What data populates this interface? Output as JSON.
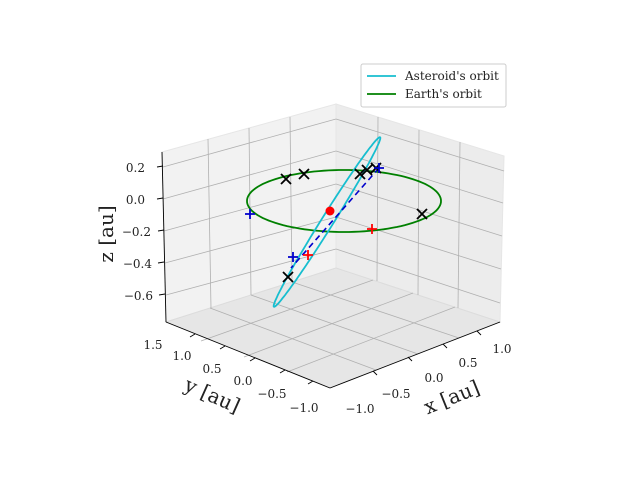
{
  "chart_data": {
    "type": "line",
    "projection": "3d",
    "xlabel": "x [au]",
    "ylabel": "y [au]",
    "zlabel": "z [au]",
    "x_ticks": [
      "−1.0",
      "−0.5",
      "0.0",
      "0.5",
      "1.0"
    ],
    "y_ticks": [
      "−1.0",
      "−0.5",
      "0.0",
      "0.5",
      "1.0",
      "1.5"
    ],
    "z_ticks": [
      "−0.6",
      "−0.4",
      "−0.2",
      "0.0",
      "0.2"
    ],
    "grid": true,
    "legend_position": "top-right",
    "series": [
      {
        "name": "Asteroid's orbit",
        "color": "#17becf",
        "kind": "orbit"
      },
      {
        "name": "Earth's orbit",
        "color": "#008000",
        "kind": "orbit"
      },
      {
        "kind": "dashed-line",
        "color": "#0000cc"
      },
      {
        "kind": "center-dot",
        "color": "#ff0000"
      },
      {
        "kind": "x-markers",
        "color": "#000000",
        "count": 7
      },
      {
        "kind": "plus-markers",
        "color": "#0000cc",
        "count": 3
      },
      {
        "kind": "plus-markers",
        "color": "#ff0000",
        "count": 2
      }
    ]
  }
}
